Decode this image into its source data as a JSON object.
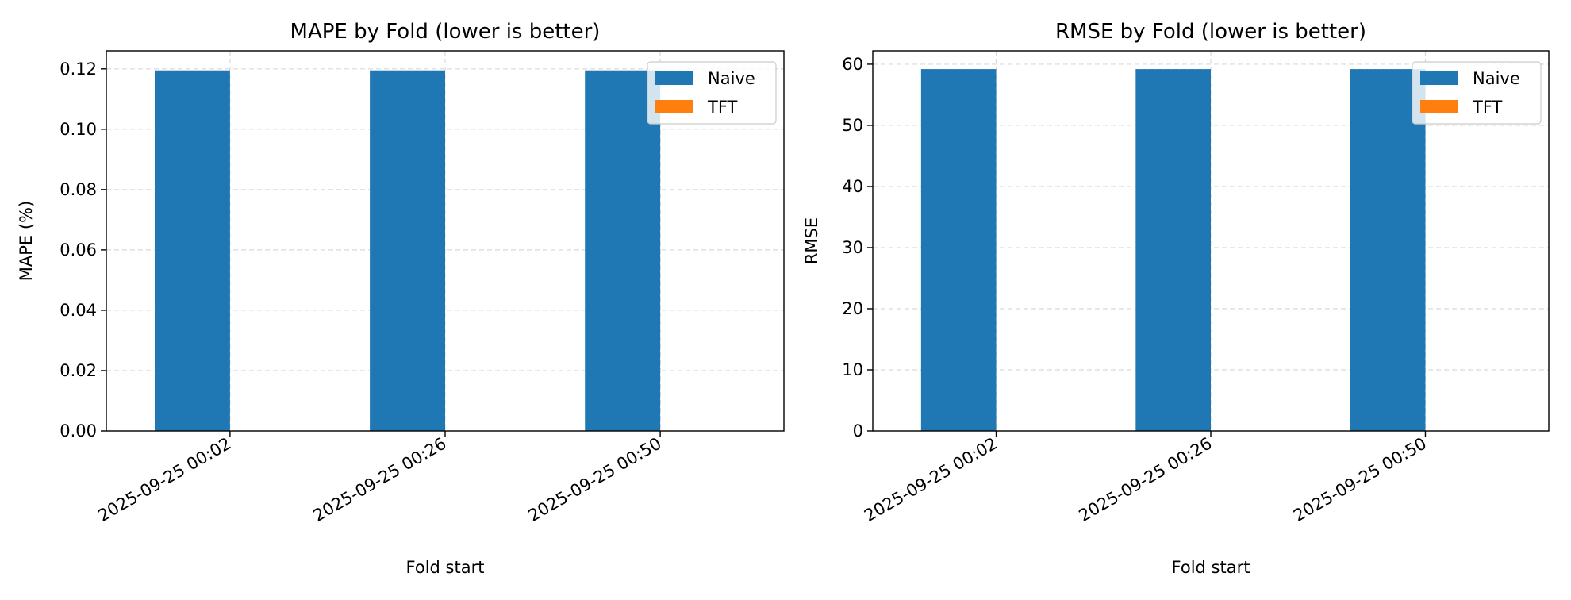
{
  "colors": {
    "naive": "#1f77b4",
    "tft": "#ff7f0e",
    "grid": "#d9d9d9",
    "axis": "#000000"
  },
  "chart_data": [
    {
      "type": "bar",
      "title": "MAPE by Fold (lower is better)",
      "xlabel": "Fold start",
      "ylabel": "MAPE (%)",
      "categories": [
        "2025-09-25 00:02",
        "2025-09-25 00:26",
        "2025-09-25 00:50"
      ],
      "series": [
        {
          "name": "Naive",
          "values": [
            0.1195,
            0.1195,
            0.1195
          ]
        },
        {
          "name": "TFT",
          "values": [
            0,
            0,
            0
          ]
        }
      ],
      "ylim": [
        0,
        0.126
      ],
      "yticks": [
        0.0,
        0.02,
        0.04,
        0.06,
        0.08,
        0.1,
        0.12
      ],
      "ytick_labels": [
        "0.00",
        "0.02",
        "0.04",
        "0.06",
        "0.08",
        "0.10",
        "0.12"
      ],
      "grid": true,
      "legend": "upper right"
    },
    {
      "type": "bar",
      "title": "RMSE by Fold (lower is better)",
      "xlabel": "Fold start",
      "ylabel": "RMSE",
      "categories": [
        "2025-09-25 00:02",
        "2025-09-25 00:26",
        "2025-09-25 00:50"
      ],
      "series": [
        {
          "name": "Naive",
          "values": [
            59.2,
            59.2,
            59.2
          ]
        },
        {
          "name": "TFT",
          "values": [
            0,
            0,
            0
          ]
        }
      ],
      "ylim": [
        0,
        62.2
      ],
      "yticks": [
        0,
        10,
        20,
        30,
        40,
        50,
        60
      ],
      "ytick_labels": [
        "0",
        "10",
        "20",
        "30",
        "40",
        "50",
        "60"
      ],
      "grid": true,
      "legend": "upper right"
    }
  ]
}
